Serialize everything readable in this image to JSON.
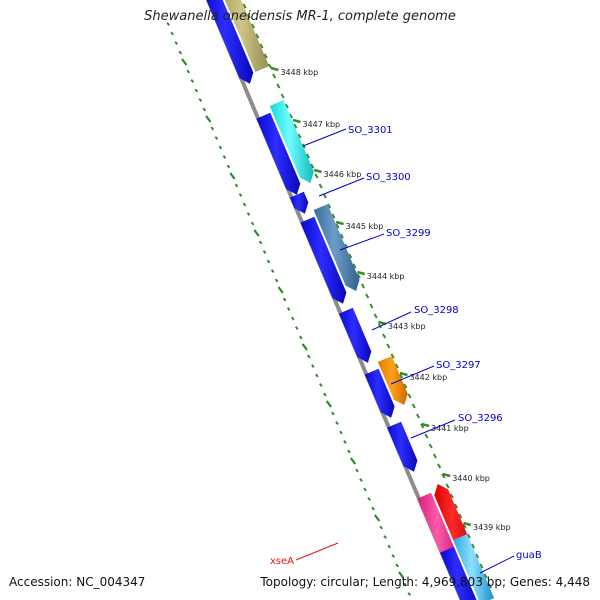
{
  "title": "Shewanella oneidensis MR-1, complete genome",
  "accession_text": "Accession: NC_004347",
  "topology_text": "Topology: circular; Length: 4,969,803 bp; Genes: 4,448",
  "colors": {
    "backbone": "#8c8c8c",
    "gc_track": "#2a8a2a",
    "tick": "#3c8a2c",
    "forward_gene": "#1414e8",
    "label_line_blue": "#0000cc",
    "label_line_red": "#ee1111"
  },
  "ticks": [
    {
      "kbp": 3448,
      "label": "3448 kbp"
    },
    {
      "kbp": 3447,
      "label": "3447 kbp"
    },
    {
      "kbp": 3446,
      "label": "3446 kbp"
    },
    {
      "kbp": 3445,
      "label": "3445 kbp"
    },
    {
      "kbp": 3444,
      "label": "3444 kbp"
    },
    {
      "kbp": 3443,
      "label": "3443 kbp"
    },
    {
      "kbp": 3442,
      "label": "3442 kbp"
    },
    {
      "kbp": 3441,
      "label": "3441 kbp"
    },
    {
      "kbp": 3440,
      "label": "3440 kbp"
    },
    {
      "kbp": 3439,
      "label": "3439 kbp"
    }
  ],
  "genes": [
    {
      "label": "SO_3301",
      "label_color": "#0000cc"
    },
    {
      "label": "SO_3300",
      "label_color": "#0000cc"
    },
    {
      "label": "SO_3299",
      "label_color": "#0000cc"
    },
    {
      "label": "SO_3298",
      "label_color": "#0000cc"
    },
    {
      "label": "SO_3297",
      "label_color": "#0000cc"
    },
    {
      "label": "SO_3296",
      "label_color": "#0000cc"
    },
    {
      "label": "xseA",
      "label_color": "#ee1111"
    },
    {
      "label": "guaB",
      "label_color": "#0000cc"
    }
  ]
}
